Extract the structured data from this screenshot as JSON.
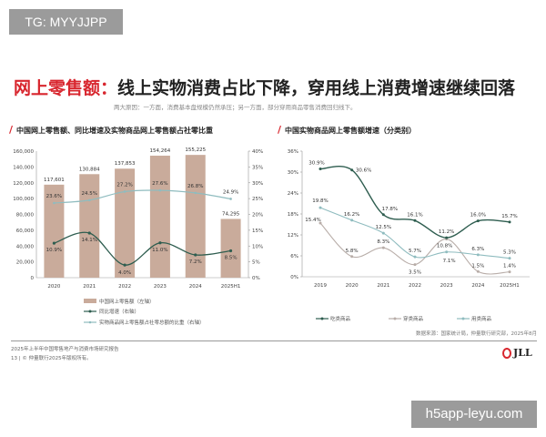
{
  "watermark_top": "TG: MYYJJPP",
  "watermark_bottom": "h5app-leyu.com",
  "title_red": "网上零售额：",
  "title_black": "线上实物消费占比下降，穿用线上消费增速继续回落",
  "subtitle": "两大原因：一方面，消费基本盘规模仍然承压；另一方面，部分穿用商品零售消费回归线下。",
  "source": "数据来源：国家统计局，仲量联行研究部，2025年8月",
  "footer_line1": "2025年上半年中国零售地产与消费市场研究报告",
  "footer_line2": "13 | © 仲量联行2025年版权所有。",
  "logo_text": "JLL",
  "colors": {
    "accent": "#d8262e",
    "bar": "#c9ab9b",
    "dark_line": "#2e5d4f",
    "light_line": "#8fbcbf",
    "gray_line": "#b8ada8"
  },
  "chart_data": [
    {
      "type": "bar+line",
      "title": "中国网上零售额、同比增速及实物商品网上零售额占社零比重",
      "categories": [
        "2020",
        "2021",
        "2022",
        "2023",
        "2024",
        "2025H1"
      ],
      "left_axis": {
        "range": [
          0,
          160000
        ],
        "ticks": [
          "0",
          "20,000",
          "40,000",
          "60,000",
          "80,000",
          "100,000",
          "120,000",
          "140,000",
          "160,000"
        ]
      },
      "right_axis": {
        "range": [
          0,
          40
        ],
        "ticks": [
          "0%",
          "5%",
          "10%",
          "15%",
          "20%",
          "25%",
          "30%",
          "35%",
          "40%"
        ]
      },
      "series": [
        {
          "name": "中国网上零售额（左轴）",
          "type": "bar",
          "axis": "left",
          "values": [
            117601,
            130884,
            137853,
            154264,
            155225,
            74295
          ],
          "labels": [
            "117,601",
            "130,884",
            "137,853",
            "154,264",
            "155,225",
            "74,295"
          ]
        },
        {
          "name": "同比增速（右轴）",
          "type": "line",
          "axis": "right",
          "values": [
            10.9,
            14.1,
            4.0,
            11.0,
            7.2,
            8.5
          ],
          "labels": [
            "10.9%",
            "14.1%",
            "4.0%",
            "11.0%",
            "7.2%",
            "8.5%"
          ]
        },
        {
          "name": "实物商品网上零售额占社零总额的比重（右轴）",
          "type": "line",
          "axis": "right",
          "values": [
            23.6,
            24.5,
            27.2,
            27.6,
            26.8,
            24.9
          ],
          "labels": [
            "23.6%",
            "24.5%",
            "27.2%",
            "27.6%",
            "26.8%",
            "24.9%"
          ]
        }
      ],
      "legend": "bottom"
    },
    {
      "type": "line",
      "title": "中国实物商品网上零售额增速（分类别）",
      "categories": [
        "2019",
        "2020",
        "2021",
        "2022",
        "2023",
        "2024",
        "2025H1"
      ],
      "y_axis": {
        "range": [
          0,
          36
        ],
        "ticks": [
          "0%",
          "6%",
          "12%",
          "18%",
          "24%",
          "30%",
          "36%"
        ]
      },
      "series": [
        {
          "name": "吃类商品",
          "values": [
            30.9,
            30.6,
            17.8,
            16.1,
            11.2,
            16.0,
            15.7
          ],
          "labels": [
            "30.9%",
            "30.6%",
            "17.8%",
            "16.1%",
            "11.2%",
            "16.0%",
            "15.7%"
          ]
        },
        {
          "name": "穿类商品",
          "values": [
            15.4,
            5.8,
            8.3,
            3.5,
            10.8,
            1.5,
            1.4
          ],
          "labels": [
            "15.4%",
            "5.8%",
            "8.3%",
            "3.5%",
            "10.8%",
            "1.5%",
            "1.4%"
          ]
        },
        {
          "name": "用类商品",
          "values": [
            19.8,
            16.2,
            12.5,
            5.7,
            7.1,
            6.3,
            5.3
          ],
          "labels": [
            "19.8%",
            "16.2%",
            "12.5%",
            "5.7%",
            "7.1%",
            "6.3%",
            "5.3%"
          ]
        }
      ],
      "legend": "bottom"
    }
  ]
}
